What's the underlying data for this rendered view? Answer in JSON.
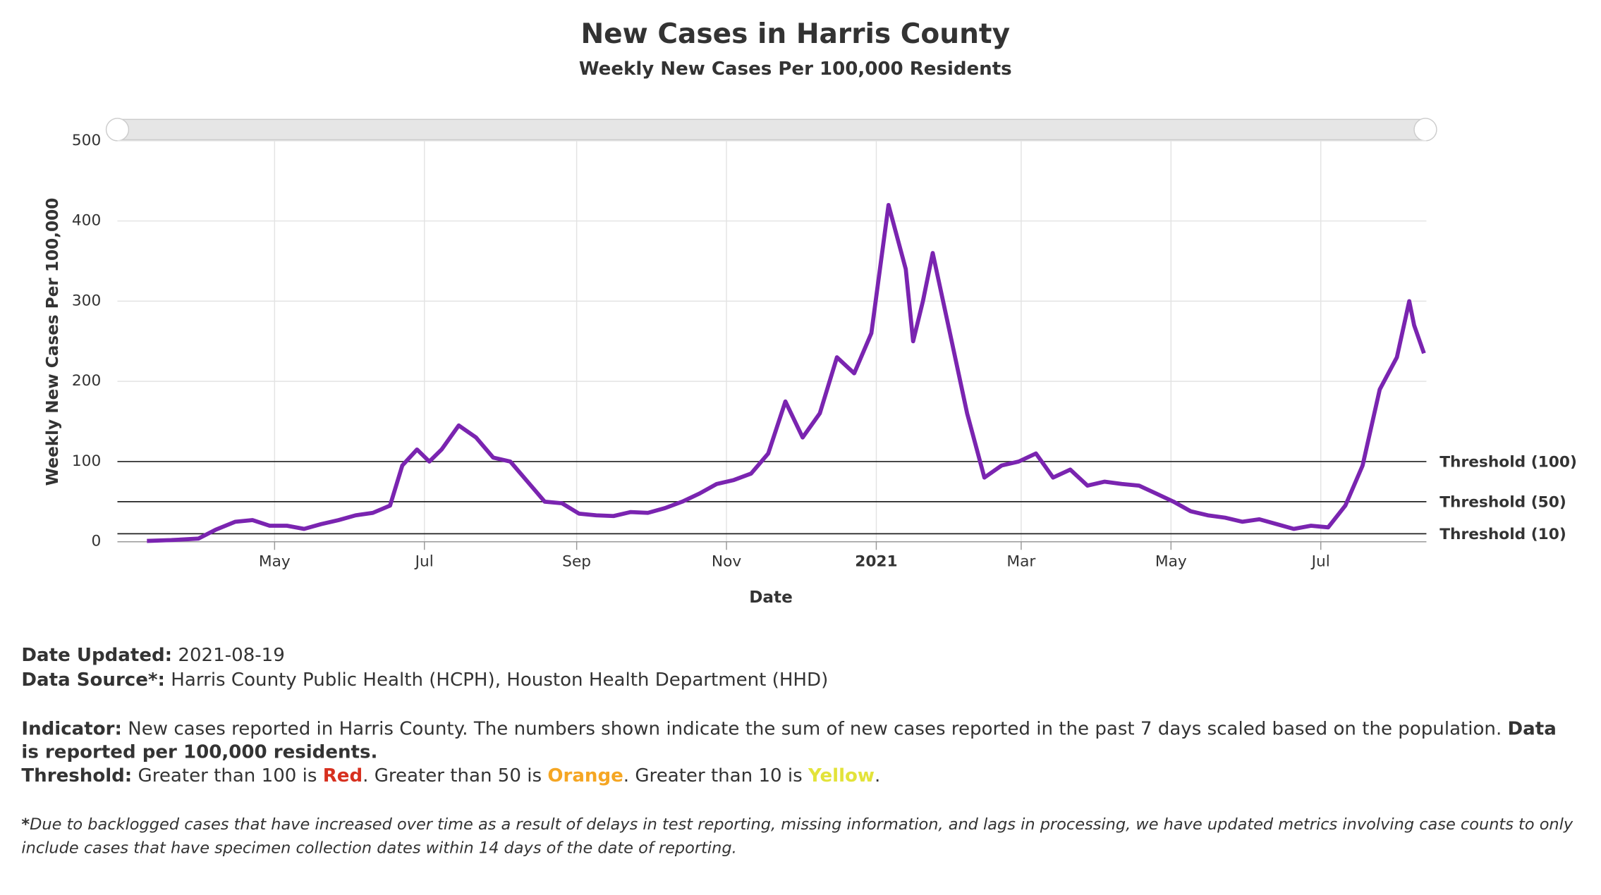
{
  "header": {
    "title": "New Cases in Harris County",
    "subtitle": "Weekly New Cases Per 100,000 Residents"
  },
  "chart_data": {
    "type": "line",
    "color": "#7a24b0",
    "x_label": "Date",
    "y_label": "Weekly New Cases Per 100,000",
    "x": [
      "2020-03-10",
      "2020-03-20",
      "2020-03-31",
      "2020-04-07",
      "2020-04-15",
      "2020-04-22",
      "2020-04-29",
      "2020-05-06",
      "2020-05-13",
      "2020-05-20",
      "2020-05-27",
      "2020-06-03",
      "2020-06-10",
      "2020-06-17",
      "2020-06-22",
      "2020-06-28",
      "2020-07-03",
      "2020-07-08",
      "2020-07-15",
      "2020-07-22",
      "2020-07-29",
      "2020-08-05",
      "2020-08-12",
      "2020-08-19",
      "2020-08-26",
      "2020-09-02",
      "2020-09-09",
      "2020-09-16",
      "2020-09-23",
      "2020-09-30",
      "2020-10-07",
      "2020-10-14",
      "2020-10-21",
      "2020-10-28",
      "2020-11-04",
      "2020-11-11",
      "2020-11-18",
      "2020-11-25",
      "2020-12-02",
      "2020-12-09",
      "2020-12-16",
      "2020-12-23",
      "2020-12-30",
      "2021-01-06",
      "2021-01-13",
      "2021-01-16",
      "2021-01-20",
      "2021-01-24",
      "2021-01-31",
      "2021-02-07",
      "2021-02-14",
      "2021-02-21",
      "2021-02-28",
      "2021-03-07",
      "2021-03-14",
      "2021-03-21",
      "2021-03-28",
      "2021-04-04",
      "2021-04-11",
      "2021-04-18",
      "2021-04-25",
      "2021-05-02",
      "2021-05-09",
      "2021-05-16",
      "2021-05-23",
      "2021-05-30",
      "2021-06-06",
      "2021-06-13",
      "2021-06-20",
      "2021-06-27",
      "2021-07-04",
      "2021-07-11",
      "2021-07-18",
      "2021-07-25",
      "2021-08-01",
      "2021-08-06",
      "2021-08-08",
      "2021-08-12"
    ],
    "values": [
      1,
      2,
      4,
      15,
      25,
      27,
      20,
      20,
      16,
      22,
      27,
      33,
      36,
      45,
      95,
      115,
      100,
      115,
      145,
      130,
      105,
      100,
      75,
      50,
      48,
      35,
      33,
      32,
      37,
      36,
      42,
      50,
      60,
      72,
      77,
      85,
      110,
      175,
      130,
      160,
      230,
      210,
      260,
      420,
      340,
      250,
      300,
      360,
      260,
      160,
      80,
      95,
      100,
      110,
      80,
      90,
      70,
      75,
      72,
      70,
      60,
      50,
      38,
      33,
      30,
      25,
      28,
      22,
      16,
      20,
      18,
      45,
      95,
      190,
      230,
      300,
      270,
      235
    ],
    "xlim": [
      "2020-02-27",
      "2021-08-13"
    ],
    "xticks": [
      {
        "value": "2020-05-01",
        "label": "May"
      },
      {
        "value": "2020-07-01",
        "label": "Jul"
      },
      {
        "value": "2020-09-01",
        "label": "Sep"
      },
      {
        "value": "2020-11-01",
        "label": "Nov"
      },
      {
        "value": "2021-01-01",
        "label": "2021",
        "bold": true
      },
      {
        "value": "2021-03-01",
        "label": "Mar"
      },
      {
        "value": "2021-05-01",
        "label": "May"
      },
      {
        "value": "2021-07-01",
        "label": "Jul"
      }
    ],
    "ylim": [
      0,
      500
    ],
    "yticks": [
      0,
      100,
      200,
      300,
      400,
      500
    ],
    "grid": true,
    "thresholds": [
      {
        "value": 100,
        "label": "Threshold (100)"
      },
      {
        "value": 50,
        "label": "Threshold (50)"
      },
      {
        "value": 10,
        "label": "Threshold (10)"
      }
    ]
  },
  "footer": {
    "date_updated": {
      "label": "Date Updated:",
      "value": "2021-08-19"
    },
    "data_source": {
      "label": "Data Source*:",
      "value": "Harris County Public Health (HCPH), Houston Health Department (HHD)"
    },
    "indicator": {
      "label": "Indicator:",
      "text": "New cases reported in Harris County. The numbers shown indicate the sum of new cases reported in the past 7 days scaled based on the population.",
      "emphasis": "Data is reported per 100,000 residents."
    },
    "threshold": {
      "label": "Threshold:",
      "parts": [
        "Greater than 100 is ",
        {
          "text": "Red",
          "color": "#d7301f"
        },
        ". Greater than 50 is ",
        {
          "text": "Orange",
          "color": "#f5a623"
        },
        ". Greater than 10 is ",
        {
          "text": "Yellow",
          "color": "#e3e33a"
        },
        "."
      ]
    },
    "note": {
      "mark": "*",
      "text": "Due to backlogged cases that have increased over time as a result of delays in test reporting, missing information, and lags in processing, we have updated metrics involving case counts to only include cases that have specimen collection dates within 14 days of the date of reporting."
    }
  }
}
